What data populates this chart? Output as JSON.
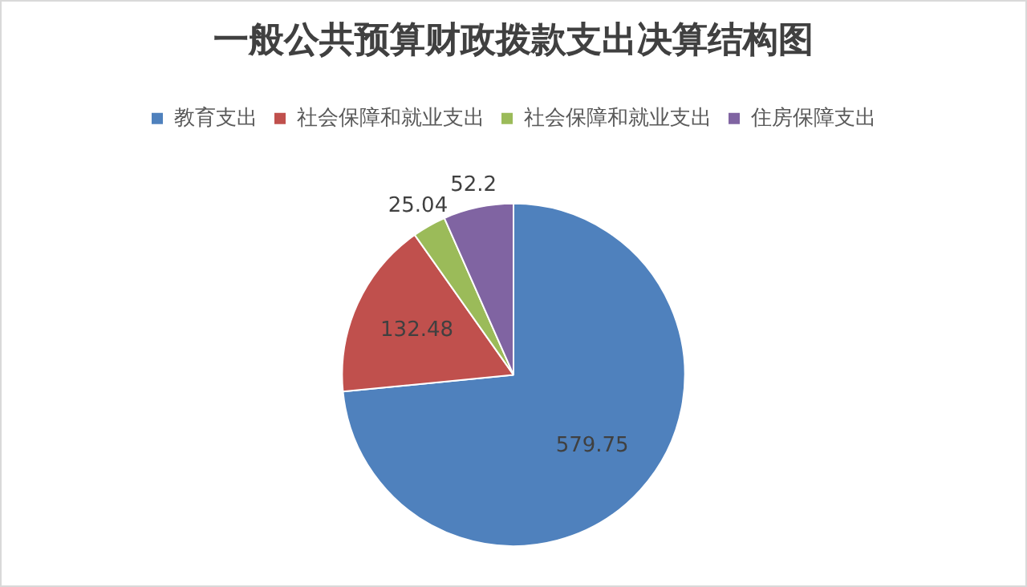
{
  "chart_data": {
    "type": "pie",
    "title": "一般公共预算财政拨款支出决算结构图",
    "categories": [
      "教育支出",
      "社会保障和就业支出",
      "社会保障和就业支出",
      "住房保障支出"
    ],
    "values": [
      579.75,
      132.48,
      25.04,
      52.2
    ],
    "colors": [
      "#4f81bd",
      "#c0504d",
      "#9bbb59",
      "#8064a2"
    ],
    "data_labels": true,
    "legend": "top"
  }
}
